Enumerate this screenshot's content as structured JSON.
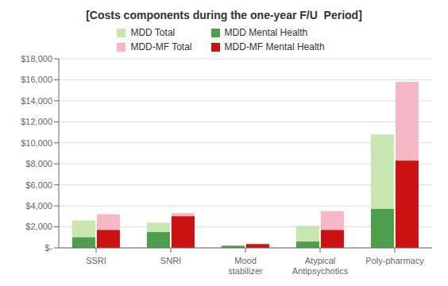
{
  "chart_data": {
    "type": "bar",
    "title": "[Costs components during the one-year F/U  Period]",
    "categories": [
      "SSRI",
      "SNRI",
      "Mood\nstabilizer",
      "Atypical\nAntipsychotics",
      "Poly-pharmacy"
    ],
    "series": [
      {
        "name": "MDD Total",
        "color": "#c8e6b0",
        "values": [
          2600,
          2400,
          200,
          2100,
          10800
        ]
      },
      {
        "name": "MDD-MF Total",
        "color": "#f5b8c4",
        "values": [
          3200,
          3300,
          400,
          3500,
          15800
        ]
      },
      {
        "name": "MDD Mental Health",
        "color": "#4d9e4d",
        "values": [
          1000,
          1500,
          200,
          600,
          3700
        ]
      },
      {
        "name": "MDD-MF Mental Health",
        "color": "#cc1111",
        "values": [
          1700,
          3000,
          350,
          1700,
          8300
        ]
      }
    ],
    "ylim": [
      0,
      18000
    ],
    "yticks": [
      {
        "value": 0,
        "label": "$-"
      },
      {
        "value": 2000,
        "label": "$2,000"
      },
      {
        "value": 4000,
        "label": "$4,000"
      },
      {
        "value": 6000,
        "label": "$6,000"
      },
      {
        "value": 8000,
        "label": "$8,000"
      },
      {
        "value": 10000,
        "label": "$10,000"
      },
      {
        "value": 12000,
        "label": "$12,000"
      },
      {
        "value": 14000,
        "label": "$14,000"
      },
      {
        "value": 16000,
        "label": "$16,000"
      },
      {
        "value": 18000,
        "label": "$18,000"
      }
    ],
    "grid": true
  }
}
